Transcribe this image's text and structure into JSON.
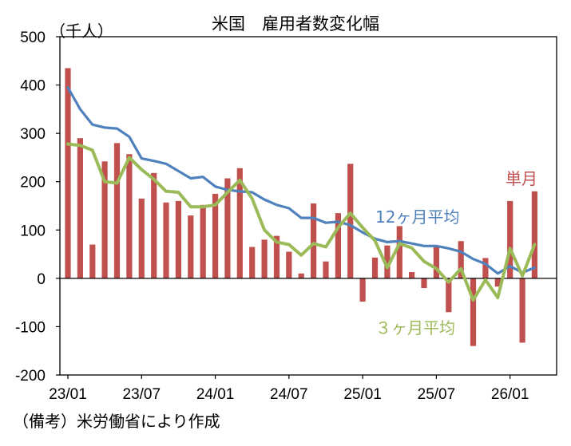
{
  "chart_data": {
    "type": "bar+line",
    "title": "米国　雇用者数変化幅",
    "unit_label": "（千人）",
    "note": "（備考）米労働省により作成",
    "ylim": [
      -200,
      500
    ],
    "y_ticks": [
      "500",
      "400",
      "300",
      "200",
      "100",
      "0",
      "-100",
      "-200"
    ],
    "x_tick_labels": [
      "23/01",
      "23/07",
      "24/01",
      "24/07",
      "25/01",
      "25/07",
      "26/01"
    ],
    "months": [
      "23/01",
      "23/02",
      "23/03",
      "23/04",
      "23/05",
      "23/06",
      "23/07",
      "23/08",
      "23/09",
      "23/10",
      "23/11",
      "23/12",
      "24/01",
      "24/02",
      "24/03",
      "24/04",
      "24/05",
      "24/06",
      "24/07",
      "24/08",
      "24/09",
      "24/10",
      "24/11",
      "24/12",
      "25/01",
      "25/02",
      "25/03",
      "25/04",
      "25/05",
      "25/06",
      "25/07",
      "25/08",
      "25/09",
      "25/10",
      "25/11",
      "25/12",
      "26/01",
      "26/02",
      "26/03"
    ],
    "series": [
      {
        "name": "単月",
        "kind": "bar",
        "color": "#c0504d",
        "values": [
          435,
          290,
          70,
          242,
          280,
          257,
          165,
          218,
          157,
          160,
          130,
          152,
          175,
          207,
          228,
          65,
          80,
          88,
          55,
          10,
          155,
          35,
          135,
          237,
          -48,
          43,
          68,
          108,
          13,
          -20,
          65,
          -70,
          77,
          -140,
          42,
          -17,
          160,
          -133,
          180
        ]
      },
      {
        "name": "12ヶ月平均",
        "kind": "line",
        "color": "#4f81bd",
        "values": [
          395,
          350,
          318,
          312,
          310,
          293,
          248,
          243,
          237,
          222,
          207,
          210,
          190,
          183,
          180,
          178,
          163,
          152,
          145,
          125,
          125,
          115,
          117,
          110,
          95,
          82,
          75,
          77,
          72,
          67,
          67,
          62,
          55,
          40,
          30,
          10,
          25,
          12,
          22
        ]
      },
      {
        "name": "３ヶ月平均",
        "kind": "line",
        "color": "#9bbb59",
        "values": [
          278,
          275,
          265,
          200,
          197,
          250,
          225,
          205,
          180,
          178,
          148,
          148,
          152,
          178,
          203,
          165,
          100,
          75,
          70,
          48,
          72,
          65,
          105,
          135,
          105,
          78,
          22,
          72,
          63,
          35,
          20,
          -8,
          20,
          -45,
          -3,
          -40,
          62,
          5,
          70
        ]
      }
    ]
  }
}
